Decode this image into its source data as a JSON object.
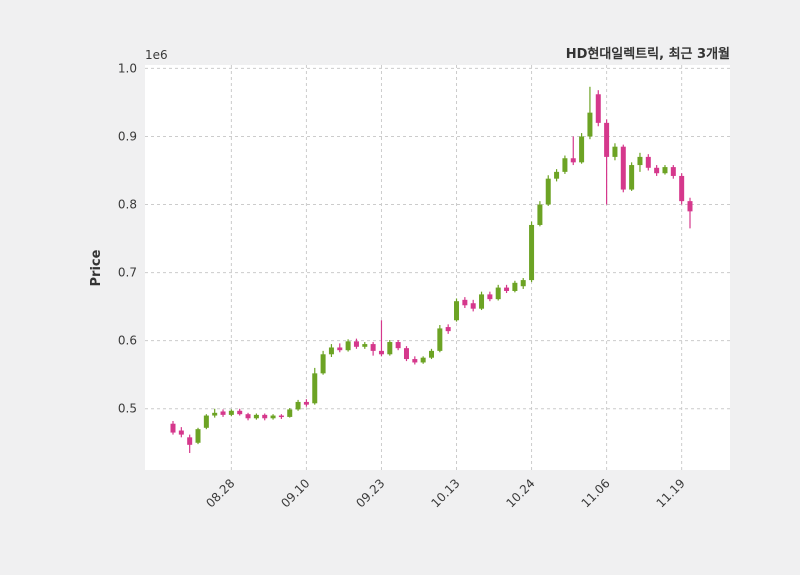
{
  "figure": {
    "bg": "#f0f0f1",
    "plot_bg": "#ffffff",
    "grid": "#cccccc",
    "text": "#3a3a3a",
    "up": "#6CA324",
    "down": "#D5388C"
  },
  "chart_data": {
    "type": "candlestick",
    "title": "HD현대일렉트릭, 최근 3개월",
    "ylabel": "Price",
    "y_unit": "1e6",
    "ylim": [
      0.41,
      1.005
    ],
    "y_ticks": [
      0.5,
      0.6,
      0.7,
      0.8,
      0.9,
      1.0
    ],
    "x_tick_labels": [
      "08.28",
      "09.10",
      "09.23",
      "10.13",
      "10.24",
      "11.06",
      "11.19"
    ],
    "x_tick_indices": [
      7,
      16,
      25,
      34,
      43,
      52,
      61
    ],
    "grid": true,
    "legend": false,
    "candles": [
      [
        0.478,
        0.482,
        0.462,
        0.465
      ],
      [
        0.468,
        0.473,
        0.458,
        0.462
      ],
      [
        0.458,
        0.462,
        0.435,
        0.447
      ],
      [
        0.45,
        0.472,
        0.448,
        0.47
      ],
      [
        0.472,
        0.492,
        0.47,
        0.49
      ],
      [
        0.49,
        0.5,
        0.487,
        0.494
      ],
      [
        0.496,
        0.499,
        0.488,
        0.491
      ],
      [
        0.491,
        0.499,
        0.489,
        0.497
      ],
      [
        0.497,
        0.5,
        0.49,
        0.492
      ],
      [
        0.492,
        0.494,
        0.483,
        0.486
      ],
      [
        0.486,
        0.493,
        0.484,
        0.491
      ],
      [
        0.491,
        0.493,
        0.483,
        0.486
      ],
      [
        0.486,
        0.492,
        0.484,
        0.49
      ],
      [
        0.49,
        0.492,
        0.485,
        0.488
      ],
      [
        0.488,
        0.501,
        0.487,
        0.499
      ],
      [
        0.499,
        0.513,
        0.497,
        0.51
      ],
      [
        0.51,
        0.514,
        0.503,
        0.506
      ],
      [
        0.508,
        0.56,
        0.506,
        0.552
      ],
      [
        0.552,
        0.585,
        0.55,
        0.58
      ],
      [
        0.58,
        0.595,
        0.576,
        0.59
      ],
      [
        0.59,
        0.596,
        0.583,
        0.586
      ],
      [
        0.586,
        0.602,
        0.584,
        0.599
      ],
      [
        0.599,
        0.603,
        0.588,
        0.591
      ],
      [
        0.591,
        0.598,
        0.588,
        0.595
      ],
      [
        0.595,
        0.598,
        0.578,
        0.585
      ],
      [
        0.585,
        0.63,
        0.577,
        0.58
      ],
      [
        0.58,
        0.601,
        0.578,
        0.598
      ],
      [
        0.598,
        0.601,
        0.586,
        0.589
      ],
      [
        0.589,
        0.592,
        0.57,
        0.573
      ],
      [
        0.573,
        0.577,
        0.565,
        0.568
      ],
      [
        0.568,
        0.577,
        0.566,
        0.575
      ],
      [
        0.575,
        0.588,
        0.573,
        0.585
      ],
      [
        0.585,
        0.623,
        0.583,
        0.618
      ],
      [
        0.62,
        0.624,
        0.61,
        0.614
      ],
      [
        0.63,
        0.662,
        0.628,
        0.658
      ],
      [
        0.66,
        0.664,
        0.648,
        0.652
      ],
      [
        0.655,
        0.66,
        0.643,
        0.647
      ],
      [
        0.647,
        0.672,
        0.645,
        0.668
      ],
      [
        0.668,
        0.672,
        0.658,
        0.661
      ],
      [
        0.661,
        0.682,
        0.659,
        0.678
      ],
      [
        0.678,
        0.682,
        0.67,
        0.673
      ],
      [
        0.673,
        0.688,
        0.671,
        0.685
      ],
      [
        0.68,
        0.692,
        0.676,
        0.689
      ],
      [
        0.689,
        0.775,
        0.686,
        0.77
      ],
      [
        0.77,
        0.805,
        0.768,
        0.8
      ],
      [
        0.8,
        0.843,
        0.798,
        0.838
      ],
      [
        0.838,
        0.852,
        0.834,
        0.848
      ],
      [
        0.848,
        0.872,
        0.845,
        0.868
      ],
      [
        0.868,
        0.9,
        0.858,
        0.862
      ],
      [
        0.862,
        0.905,
        0.86,
        0.9
      ],
      [
        0.9,
        0.973,
        0.896,
        0.935
      ],
      [
        0.962,
        0.968,
        0.915,
        0.92
      ],
      [
        0.92,
        0.925,
        0.8,
        0.87
      ],
      [
        0.87,
        0.89,
        0.865,
        0.885
      ],
      [
        0.885,
        0.888,
        0.818,
        0.822
      ],
      [
        0.822,
        0.862,
        0.82,
        0.858
      ],
      [
        0.858,
        0.876,
        0.848,
        0.87
      ],
      [
        0.87,
        0.874,
        0.85,
        0.854
      ],
      [
        0.854,
        0.858,
        0.842,
        0.846
      ],
      [
        0.846,
        0.858,
        0.844,
        0.855
      ],
      [
        0.855,
        0.858,
        0.838,
        0.842
      ],
      [
        0.842,
        0.846,
        0.8,
        0.805
      ],
      [
        0.805,
        0.81,
        0.765,
        0.79
      ]
    ]
  }
}
